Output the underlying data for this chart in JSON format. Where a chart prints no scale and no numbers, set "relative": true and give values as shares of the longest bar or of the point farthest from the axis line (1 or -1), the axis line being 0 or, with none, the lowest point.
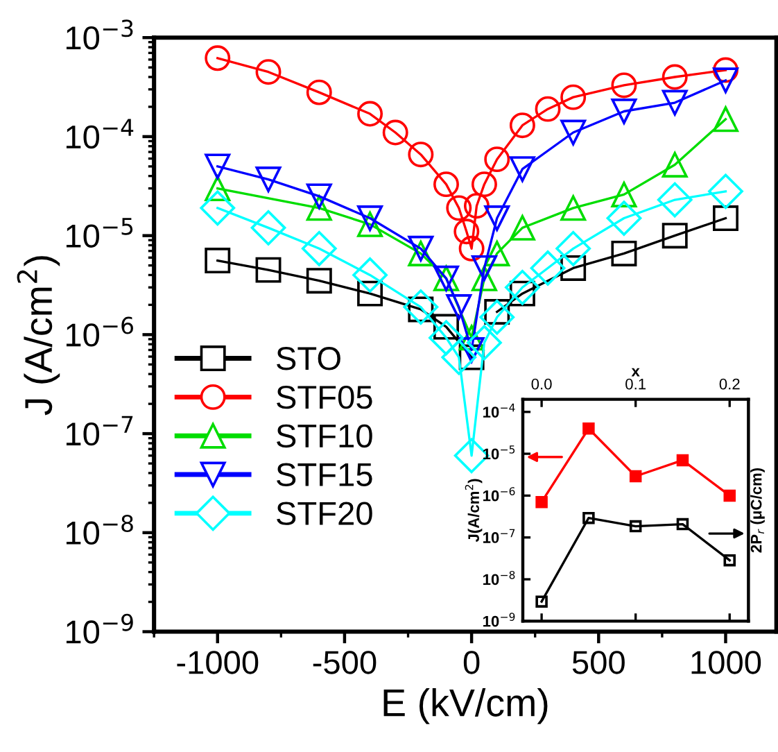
{
  "chart_data": [
    {
      "type": "line",
      "xlabel": "E (kV/cm)",
      "ylabel": "J (A/cm$^{2}$)",
      "log": "y",
      "xlim": [
        -1250,
        1200
      ],
      "xticks": [
        -1000,
        -500,
        0,
        500,
        1000
      ],
      "ylim": [
        1e-09,
        0.001
      ],
      "yticks": [
        {
          "value": 1e-09,
          "label": "10$^{−9}$"
        },
        {
          "value": 1e-08,
          "label": "10$^{−8}$"
        },
        {
          "value": 1e-07,
          "label": "10$^{−7}$"
        },
        {
          "value": 1e-06,
          "label": "10$^{−6}$"
        },
        {
          "value": 1e-05,
          "label": "10$^{−5}$"
        },
        {
          "value": 0.0001,
          "label": "10$^{−4}$"
        },
        {
          "value": 0.001,
          "label": "10$^{−3}$"
        }
      ],
      "legend": "bottom left",
      "line_style": "solid",
      "series": [
        {
          "name": "STO",
          "color": "#000000",
          "marker": "square",
          "x": [
            -1000,
            -800,
            -600,
            -400,
            -200,
            -100,
            0,
            50,
            100,
            200,
            400,
            600,
            800,
            1000
          ],
          "values": [
            5.6e-06,
            4.5e-06,
            3.5e-06,
            2.6e-06,
            1.8e-06,
            1.2e-06,
            5.9e-07,
            null,
            1.7e-06,
            2.6e-06,
            4.7e-06,
            6.6e-06,
            1e-05,
            1.5e-05
          ]
        },
        {
          "name": "STF05",
          "color": "#ff0000",
          "marker": "circle",
          "x": [
            -1000,
            -800,
            -600,
            -400,
            -300,
            -200,
            -100,
            -50,
            -20,
            0,
            20,
            50,
            100,
            200,
            300,
            400,
            600,
            800,
            1000
          ],
          "values": [
            0.00062,
            0.00045,
            0.00028,
            0.00017,
            0.00011,
            6.6e-05,
            3.3e-05,
            1.9e-05,
            1.1e-05,
            7.4e-06,
            2e-05,
            3.3e-05,
            5.9e-05,
            0.00013,
            0.00019,
            0.00025,
            0.00033,
            0.0004,
            0.00047
          ]
        },
        {
          "name": "STF10",
          "color": "#00dd00",
          "marker": "triangle",
          "x": [
            -1000,
            -600,
            -400,
            -200,
            -100,
            0,
            50,
            100,
            200,
            400,
            600,
            800,
            1000
          ],
          "values": [
            3e-05,
            1.9e-05,
            1.3e-05,
            6.6e-06,
            3.7e-06,
            9.3e-07,
            3.7e-06,
            6.6e-06,
            1.2e-05,
            1.9e-05,
            2.6e-05,
            5.2e-05,
            0.00015
          ]
        },
        {
          "name": "STF15",
          "color": "#0000ff",
          "marker": "triangle_down",
          "x": [
            -1000,
            -800,
            -600,
            -400,
            -200,
            -100,
            -50,
            0,
            50,
            100,
            200,
            400,
            600,
            800,
            1000
          ],
          "values": [
            5e-05,
            3.7e-05,
            2.5e-05,
            1.5e-05,
            7.4e-06,
            3.7e-06,
            1.9e-06,
            7e-07,
            4.7e-06,
            1.5e-05,
            4.7e-05,
            0.00011,
            0.00018,
            0.00022,
            0.00037
          ]
        },
        {
          "name": "STF20",
          "color": "#00ffff",
          "marker": "diamond",
          "x": [
            -1000,
            -800,
            -600,
            -400,
            -200,
            -100,
            -50,
            0,
            50,
            100,
            200,
            300,
            400,
            600,
            800,
            1000
          ],
          "values": [
            1.9e-05,
            1.2e-05,
            7.4e-06,
            4e-06,
            1.9e-06,
            9.3e-07,
            5.9e-07,
            6e-08,
            8.3e-07,
            1.5e-06,
            3e-06,
            4.7e-06,
            7.4e-06,
            1.5e-05,
            2.3e-05,
            2.8e-05
          ]
        }
      ]
    },
    {
      "type": "line",
      "xlabel": "x",
      "ylabel": "J(A/cm$^{2}$)",
      "log": "y",
      "xlim": [
        -0.02,
        0.22
      ],
      "xticks": [
        {
          "value": 0,
          "label": "0.0"
        },
        {
          "value": 0.1,
          "label": "0.1"
        },
        {
          "value": 0.2,
          "label": "0.2"
        }
      ],
      "ylim": [
        1e-09,
        0.0002
      ],
      "yticks": [
        {
          "value": 1e-09,
          "label": "10$^{−9}$"
        },
        {
          "value": 1e-08,
          "label": "10$^{−8}$"
        },
        {
          "value": 1e-07,
          "label": "10$^{−7}$"
        },
        {
          "value": 1e-06,
          "label": "10$^{−6}$"
        },
        {
          "value": 1e-05,
          "label": "10$^{−5}$"
        },
        {
          "value": 0.0001,
          "label": "10$^{−4}$"
        }
      ],
      "line_style": "solid",
      "series": [
        {
          "color": "#ff0000",
          "marker": "square",
          "x": [
            0,
            0.05,
            0.1,
            0.15,
            0.2
          ],
          "values": [
            7e-07,
            4e-05,
            2.9e-06,
            7e-06,
            1e-06
          ]
        }
      ]
    },
    {
      "type": "line",
      "relative": true,
      "ylabel": "2P$_{r}$ (μC/cm)",
      "xlim": [
        -0.02,
        0.22
      ],
      "line_style": "solid",
      "series": [
        {
          "color": "#000000",
          "marker": "square",
          "x": [
            0,
            0.05,
            0.1,
            0.15,
            0.2
          ],
          "values": [
            0.19,
            1,
            0.92,
            0.94,
            0.59
          ]
        }
      ]
    }
  ]
}
